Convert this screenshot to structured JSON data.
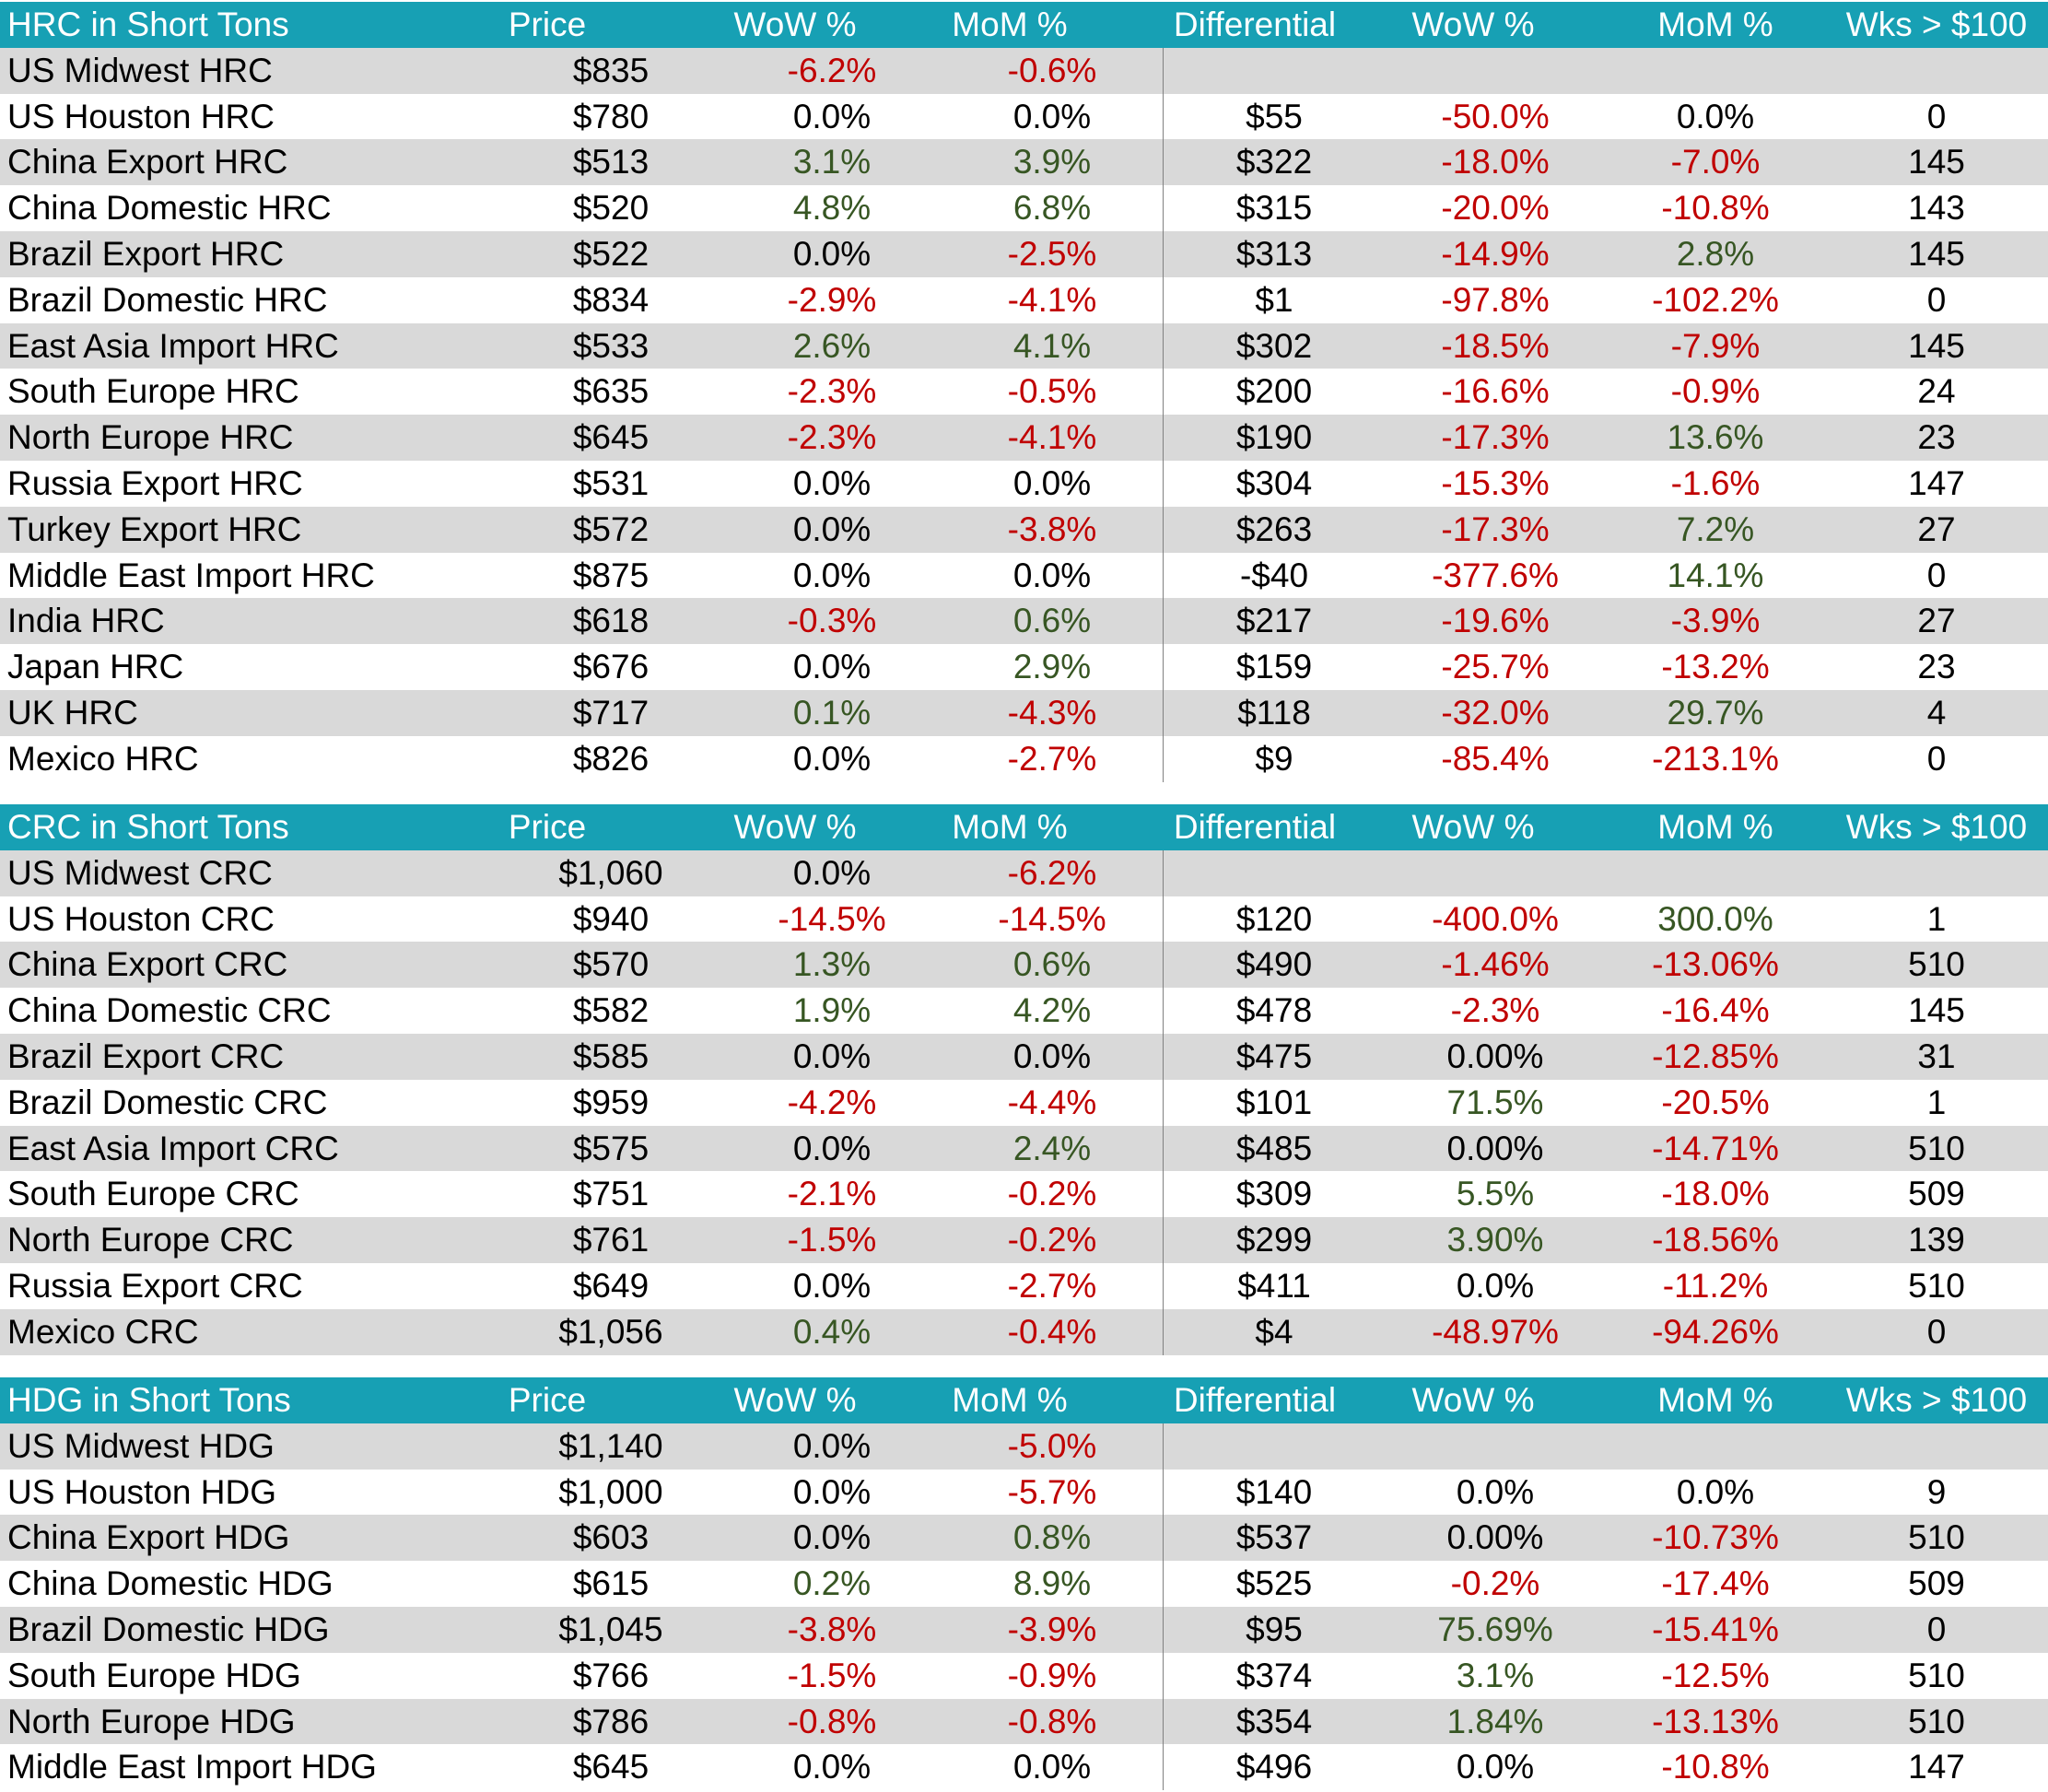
{
  "colors": {
    "header_bg": "#17a0b4",
    "header_text": "#ffffff",
    "band_bg": "#d9d9d9",
    "positive": "#375623",
    "negative": "#c00000",
    "neutral": "#000000"
  },
  "sections": [
    {
      "headers": [
        "HRC in Short Tons",
        "Price",
        "WoW %",
        "MoM %",
        "Differential",
        "WoW %",
        "MoM %",
        "Wks > $100"
      ],
      "rows": [
        [
          "US Midwest HRC",
          "$835",
          "-6.2%",
          "-0.6%",
          "",
          "",
          "",
          ""
        ],
        [
          "US Houston HRC",
          "$780",
          "0.0%",
          "0.0%",
          "$55",
          "-50.0%",
          "0.0%",
          "0"
        ],
        [
          "China Export HRC",
          "$513",
          "3.1%",
          "3.9%",
          "$322",
          "-18.0%",
          "-7.0%",
          "145"
        ],
        [
          "China Domestic HRC",
          "$520",
          "4.8%",
          "6.8%",
          "$315",
          "-20.0%",
          "-10.8%",
          "143"
        ],
        [
          "Brazil Export HRC",
          "$522",
          "0.0%",
          "-2.5%",
          "$313",
          "-14.9%",
          "2.8%",
          "145"
        ],
        [
          "Brazil Domestic HRC",
          "$834",
          "-2.9%",
          "-4.1%",
          "$1",
          "-97.8%",
          "-102.2%",
          "0"
        ],
        [
          "East Asia Import HRC",
          "$533",
          "2.6%",
          "4.1%",
          "$302",
          "-18.5%",
          "-7.9%",
          "145"
        ],
        [
          "South Europe HRC",
          "$635",
          "-2.3%",
          "-0.5%",
          "$200",
          "-16.6%",
          "-0.9%",
          "24"
        ],
        [
          "North Europe HRC",
          "$645",
          "-2.3%",
          "-4.1%",
          "$190",
          "-17.3%",
          "13.6%",
          "23"
        ],
        [
          "Russia Export HRC",
          "$531",
          "0.0%",
          "0.0%",
          "$304",
          "-15.3%",
          "-1.6%",
          "147"
        ],
        [
          "Turkey Export HRC",
          "$572",
          "0.0%",
          "-3.8%",
          "$263",
          "-17.3%",
          "7.2%",
          "27"
        ],
        [
          "Middle East Import HRC",
          "$875",
          "0.0%",
          "0.0%",
          "-$40",
          "-377.6%",
          "14.1%",
          "0"
        ],
        [
          "India HRC",
          "$618",
          "-0.3%",
          "0.6%",
          "$217",
          "-19.6%",
          "-3.9%",
          "27"
        ],
        [
          "Japan HRC",
          "$676",
          "0.0%",
          "2.9%",
          "$159",
          "-25.7%",
          "-13.2%",
          "23"
        ],
        [
          "UK HRC",
          "$717",
          "0.1%",
          "-4.3%",
          "$118",
          "-32.0%",
          "29.7%",
          "4"
        ],
        [
          "Mexico HRC",
          "$826",
          "0.0%",
          "-2.7%",
          "$9",
          "-85.4%",
          "-213.1%",
          "0"
        ]
      ]
    },
    {
      "headers": [
        "CRC in Short Tons",
        "Price",
        "WoW %",
        "MoM %",
        "Differential",
        "WoW %",
        "MoM %",
        "Wks > $100"
      ],
      "rows": [
        [
          "US Midwest CRC",
          "$1,060",
          "0.0%",
          "-6.2%",
          "",
          "",
          "",
          ""
        ],
        [
          "US Houston CRC",
          "$940",
          "-14.5%",
          "-14.5%",
          "$120",
          "-400.0%",
          "300.0%",
          "1"
        ],
        [
          "China Export CRC",
          "$570",
          "1.3%",
          "0.6%",
          "$490",
          "-1.46%",
          "-13.06%",
          "510"
        ],
        [
          "China Domestic CRC",
          "$582",
          "1.9%",
          "4.2%",
          "$478",
          "-2.3%",
          "-16.4%",
          "145"
        ],
        [
          "Brazil Export CRC",
          "$585",
          "0.0%",
          "0.0%",
          "$475",
          "0.00%",
          "-12.85%",
          "31"
        ],
        [
          "Brazil Domestic CRC",
          "$959",
          "-4.2%",
          "-4.4%",
          "$101",
          "71.5%",
          "-20.5%",
          "1"
        ],
        [
          "East Asia Import CRC",
          "$575",
          "0.0%",
          "2.4%",
          "$485",
          "0.00%",
          "-14.71%",
          "510"
        ],
        [
          "South Europe CRC",
          "$751",
          "-2.1%",
          "-0.2%",
          "$309",
          "5.5%",
          "-18.0%",
          "509"
        ],
        [
          "North Europe CRC",
          "$761",
          "-1.5%",
          "-0.2%",
          "$299",
          "3.90%",
          "-18.56%",
          "139"
        ],
        [
          "Russia Export CRC",
          "$649",
          "0.0%",
          "-2.7%",
          "$411",
          "0.0%",
          "-11.2%",
          "510"
        ],
        [
          "Mexico CRC",
          "$1,056",
          "0.4%",
          "-0.4%",
          "$4",
          "-48.97%",
          "-94.26%",
          "0"
        ]
      ]
    },
    {
      "headers": [
        "HDG in Short Tons",
        "Price",
        "WoW %",
        "MoM %",
        "Differential",
        "WoW %",
        "MoM %",
        "Wks > $100"
      ],
      "rows": [
        [
          "US Midwest HDG",
          "$1,140",
          "0.0%",
          "-5.0%",
          "",
          "",
          "",
          ""
        ],
        [
          "US Houston HDG",
          "$1,000",
          "0.0%",
          "-5.7%",
          "$140",
          "0.0%",
          "0.0%",
          "9"
        ],
        [
          "China Export HDG",
          "$603",
          "0.0%",
          "0.8%",
          "$537",
          "0.00%",
          "-10.73%",
          "510"
        ],
        [
          "China Domestic HDG",
          "$615",
          "0.2%",
          "8.9%",
          "$525",
          "-0.2%",
          "-17.4%",
          "509"
        ],
        [
          "Brazil Domestic HDG",
          "$1,045",
          "-3.8%",
          "-3.9%",
          "$95",
          "75.69%",
          "-15.41%",
          "0"
        ],
        [
          "South Europe HDG",
          "$766",
          "-1.5%",
          "-0.9%",
          "$374",
          "3.1%",
          "-12.5%",
          "510"
        ],
        [
          "North Europe HDG",
          "$786",
          "-0.8%",
          "-0.8%",
          "$354",
          "1.84%",
          "-13.13%",
          "510"
        ],
        [
          "Middle East Import HDG",
          "$645",
          "0.0%",
          "0.0%",
          "$496",
          "0.0%",
          "-10.8%",
          "147"
        ]
      ]
    }
  ]
}
